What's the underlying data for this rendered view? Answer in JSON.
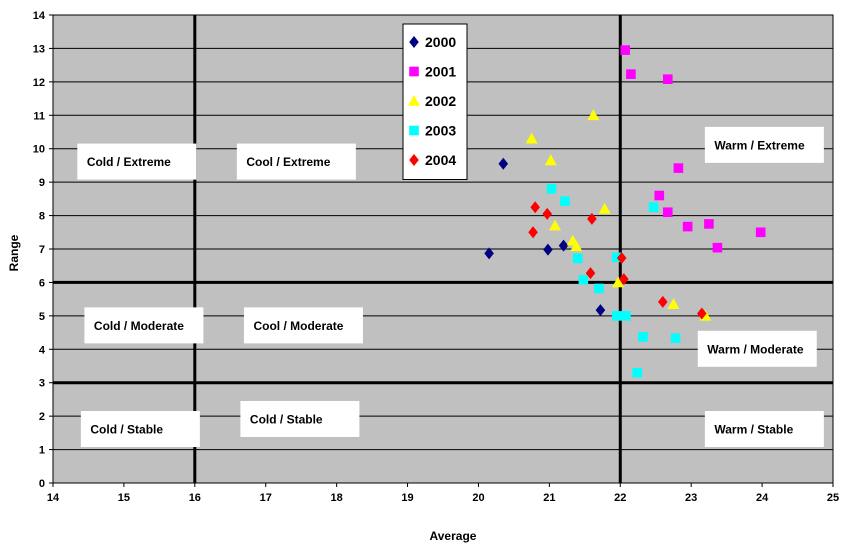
{
  "chart_data": {
    "type": "scatter",
    "xlabel": "Average",
    "ylabel": "Range",
    "xlim": [
      14,
      25
    ],
    "ylim": [
      0,
      14
    ],
    "x_ticks": [
      14,
      15,
      16,
      17,
      18,
      19,
      20,
      21,
      22,
      23,
      24,
      25
    ],
    "y_ticks": [
      0,
      1,
      2,
      3,
      4,
      5,
      6,
      7,
      8,
      9,
      10,
      11,
      12,
      13,
      14
    ],
    "grid": "horizontal",
    "legend_position": "top-center",
    "plot_background": "#c0c0c0",
    "divider_lines": {
      "x": [
        16,
        22
      ],
      "y": [
        3,
        6
      ]
    },
    "regions": [
      {
        "label": "Cold / Extreme",
        "x": 14.35,
        "y": 9.6
      },
      {
        "label": "Cool / Extreme",
        "x": 16.6,
        "y": 9.6
      },
      {
        "label": "Warm / Extreme",
        "x": 23.2,
        "y": 10.1
      },
      {
        "label": "Cold / Moderate",
        "x": 14.45,
        "y": 4.7
      },
      {
        "label": "Cool / Moderate",
        "x": 16.7,
        "y": 4.7
      },
      {
        "label": "Warm / Moderate",
        "x": 23.1,
        "y": 4.0
      },
      {
        "label": "Cold / Stable",
        "x": 14.4,
        "y": 1.6
      },
      {
        "label": "Cold / Stable",
        "x": 16.65,
        "y": 1.9
      },
      {
        "label": "Warm / Stable",
        "x": 23.2,
        "y": 1.6
      }
    ],
    "series": [
      {
        "name": "2000",
        "marker": "diamond",
        "color": "#000080",
        "points": [
          [
            20.35,
            9.55
          ],
          [
            20.15,
            6.87
          ],
          [
            20.98,
            6.98
          ],
          [
            21.2,
            7.1
          ],
          [
            21.72,
            5.17
          ]
        ]
      },
      {
        "name": "2001",
        "marker": "square",
        "color": "#ff00ff",
        "points": [
          [
            22.07,
            12.95
          ],
          [
            22.15,
            12.23
          ],
          [
            22.67,
            12.08
          ],
          [
            22.82,
            9.42
          ],
          [
            22.55,
            8.6
          ],
          [
            22.67,
            8.1
          ],
          [
            22.95,
            7.67
          ],
          [
            23.25,
            7.75
          ],
          [
            23.37,
            7.04
          ],
          [
            23.98,
            7.5
          ]
        ]
      },
      {
        "name": "2002",
        "marker": "triangle",
        "color": "#ffff00",
        "points": [
          [
            21.62,
            11.0
          ],
          [
            20.75,
            10.3
          ],
          [
            21.02,
            9.65
          ],
          [
            21.08,
            7.7
          ],
          [
            21.78,
            8.2
          ],
          [
            21.33,
            7.25
          ],
          [
            21.38,
            7.08
          ],
          [
            21.97,
            6.0
          ],
          [
            22.75,
            5.35
          ],
          [
            23.2,
            5.0
          ]
        ]
      },
      {
        "name": "2003",
        "marker": "square",
        "color": "#00ffff",
        "points": [
          [
            21.03,
            8.8
          ],
          [
            21.22,
            8.43
          ],
          [
            22.47,
            8.25
          ],
          [
            21.4,
            6.72
          ],
          [
            21.95,
            6.75
          ],
          [
            21.48,
            6.08
          ],
          [
            21.7,
            5.82
          ],
          [
            21.95,
            5.0
          ],
          [
            22.08,
            5.0
          ],
          [
            22.32,
            4.37
          ],
          [
            22.78,
            4.33
          ],
          [
            22.24,
            3.3
          ]
        ]
      },
      {
        "name": "2004",
        "marker": "diamond",
        "color": "#ff0000",
        "points": [
          [
            20.8,
            8.25
          ],
          [
            20.97,
            8.05
          ],
          [
            21.6,
            7.9
          ],
          [
            20.77,
            7.5
          ],
          [
            22.02,
            6.73
          ],
          [
            21.58,
            6.28
          ],
          [
            22.05,
            6.1
          ],
          [
            22.6,
            5.42
          ],
          [
            23.15,
            5.07
          ]
        ]
      }
    ]
  }
}
